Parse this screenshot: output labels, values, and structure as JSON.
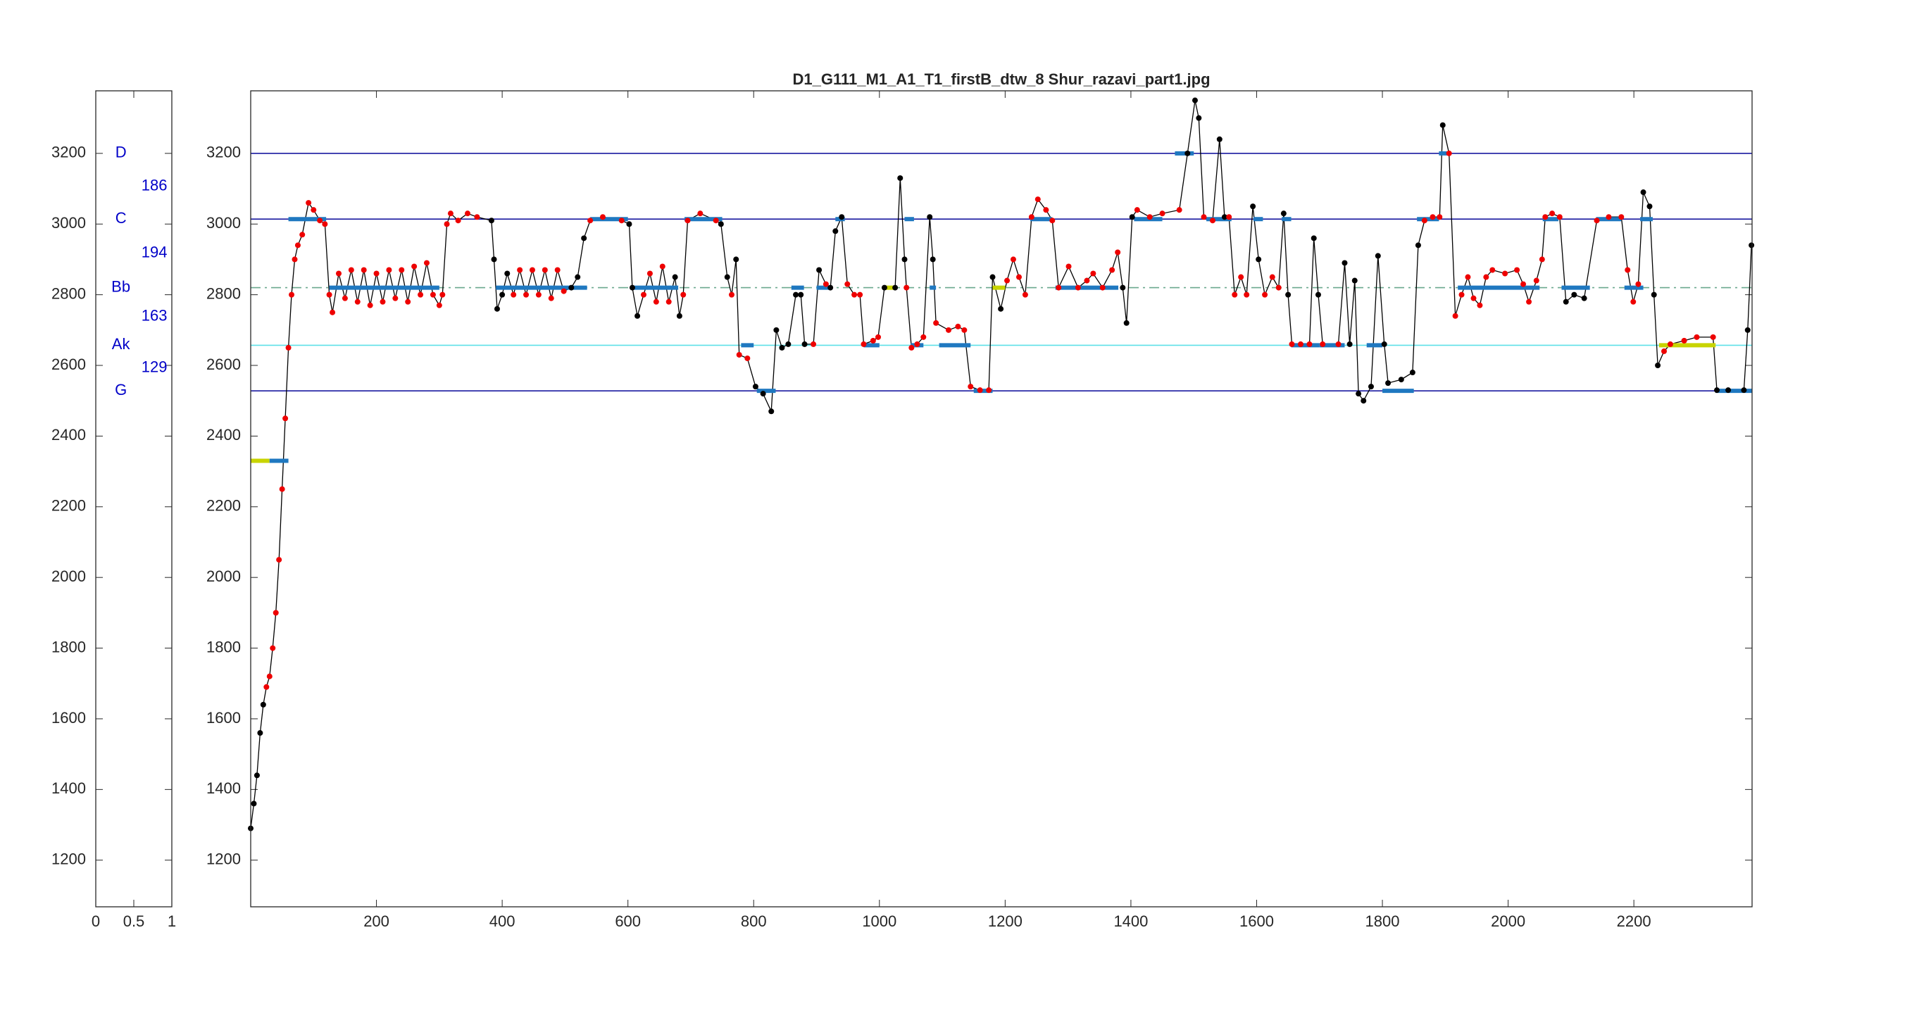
{
  "chart_data": [
    {
      "type": "scale",
      "xlim": [
        0,
        1
      ],
      "xticks": [
        0,
        0.5,
        1
      ],
      "ylim": [
        1068,
        3377
      ],
      "yticks": [
        1200,
        1400,
        1600,
        1800,
        2000,
        2200,
        2400,
        2600,
        2800,
        3000,
        3200
      ],
      "notes": [
        {
          "label": "D",
          "value": 3200
        },
        {
          "label": "C",
          "value": 3014
        },
        {
          "label": "Bb",
          "value": 2820
        },
        {
          "label": "Ak",
          "value": 2657
        },
        {
          "label": "G",
          "value": 2528
        }
      ],
      "intervals": [
        186,
        194,
        163,
        129
      ],
      "color": "#0000c8"
    },
    {
      "type": "line",
      "title": "D1_G111_M1_A1_T1_firstB_dtw_8 Shur_razavi_part1.jpg",
      "xlim": [
        0,
        2388
      ],
      "xticks": [
        200,
        400,
        600,
        800,
        1000,
        1200,
        1400,
        1600,
        1800,
        2000,
        2200
      ],
      "ylim": [
        1068,
        3377
      ],
      "yticks": [
        1200,
        1400,
        1600,
        1800,
        2000,
        2200,
        2400,
        2600,
        2800,
        3000,
        3200
      ],
      "reference_lines": [
        {
          "value": 3200,
          "color": "#1a1aa0",
          "style": "solid"
        },
        {
          "value": 3014,
          "color": "#1a1aa0",
          "style": "solid"
        },
        {
          "value": 2820,
          "color": "#6aa88e",
          "style": "dashed"
        },
        {
          "value": 2657,
          "color": "#5ee0e8",
          "style": "solid"
        },
        {
          "value": 2528,
          "color": "#1a1aa0",
          "style": "solid"
        }
      ],
      "segments": [
        {
          "x": [
            0,
            30
          ],
          "value": 2330,
          "color": "#c8d400"
        },
        {
          "x": [
            30,
            60
          ],
          "value": 2330,
          "color": "#1f78c0"
        },
        {
          "x": [
            60,
            120
          ],
          "value": 3014,
          "color": "#1f78c0"
        },
        {
          "x": [
            125,
            300
          ],
          "value": 2820,
          "color": "#1f78c0"
        },
        {
          "x": [
            390,
            535
          ],
          "value": 2820,
          "color": "#1f78c0"
        },
        {
          "x": [
            540,
            600
          ],
          "value": 3014,
          "color": "#1f78c0"
        },
        {
          "x": [
            605,
            680
          ],
          "value": 2820,
          "color": "#1f78c0"
        },
        {
          "x": [
            690,
            750
          ],
          "value": 3014,
          "color": "#1f78c0"
        },
        {
          "x": [
            780,
            800
          ],
          "value": 2657,
          "color": "#1f78c0"
        },
        {
          "x": [
            805,
            835
          ],
          "value": 2528,
          "color": "#1f78c0"
        },
        {
          "x": [
            860,
            880
          ],
          "value": 2820,
          "color": "#1f78c0"
        },
        {
          "x": [
            900,
            925
          ],
          "value": 2820,
          "color": "#1f78c0"
        },
        {
          "x": [
            930,
            945
          ],
          "value": 3014,
          "color": "#1f78c0"
        },
        {
          "x": [
            975,
            1000
          ],
          "value": 2657,
          "color": "#1f78c0"
        },
        {
          "x": [
            1005,
            1025
          ],
          "value": 2820,
          "color": "#c8d400"
        },
        {
          "x": [
            1040,
            1055
          ],
          "value": 3014,
          "color": "#1f78c0"
        },
        {
          "x": [
            1050,
            1070
          ],
          "value": 2657,
          "color": "#1f78c0"
        },
        {
          "x": [
            1080,
            1090
          ],
          "value": 2820,
          "color": "#1f78c0"
        },
        {
          "x": [
            1095,
            1145
          ],
          "value": 2657,
          "color": "#1f78c0"
        },
        {
          "x": [
            1150,
            1180
          ],
          "value": 2528,
          "color": "#1f78c0"
        },
        {
          "x": [
            1180,
            1200
          ],
          "value": 2820,
          "color": "#c8d400"
        },
        {
          "x": [
            1240,
            1275
          ],
          "value": 3014,
          "color": "#1f78c0"
        },
        {
          "x": [
            1280,
            1380
          ],
          "value": 2820,
          "color": "#1f78c0"
        },
        {
          "x": [
            1405,
            1450
          ],
          "value": 3014,
          "color": "#1f78c0"
        },
        {
          "x": [
            1470,
            1500
          ],
          "value": 3200,
          "color": "#1f78c0"
        },
        {
          "x": [
            1520,
            1560
          ],
          "value": 3014,
          "color": "#1f78c0"
        },
        {
          "x": [
            1595,
            1610
          ],
          "value": 3014,
          "color": "#1f78c0"
        },
        {
          "x": [
            1640,
            1655
          ],
          "value": 3014,
          "color": "#1f78c0"
        },
        {
          "x": [
            1655,
            1700
          ],
          "value": 2657,
          "color": "#1f78c0"
        },
        {
          "x": [
            1700,
            1740
          ],
          "value": 2657,
          "color": "#1f78c0"
        },
        {
          "x": [
            1775,
            1800
          ],
          "value": 2657,
          "color": "#1f78c0"
        },
        {
          "x": [
            1800,
            1850
          ],
          "value": 2528,
          "color": "#1f78c0"
        },
        {
          "x": [
            1855,
            1890
          ],
          "value": 3014,
          "color": "#1f78c0"
        },
        {
          "x": [
            1890,
            1905
          ],
          "value": 3200,
          "color": "#1f78c0"
        },
        {
          "x": [
            1920,
            2050
          ],
          "value": 2820,
          "color": "#1f78c0"
        },
        {
          "x": [
            2055,
            2080
          ],
          "value": 3014,
          "color": "#1f78c0"
        },
        {
          "x": [
            2085,
            2130
          ],
          "value": 2820,
          "color": "#1f78c0"
        },
        {
          "x": [
            2140,
            2180
          ],
          "value": 3014,
          "color": "#1f78c0"
        },
        {
          "x": [
            2185,
            2215
          ],
          "value": 2820,
          "color": "#1f78c0"
        },
        {
          "x": [
            2210,
            2230
          ],
          "value": 3014,
          "color": "#1f78c0"
        },
        {
          "x": [
            2240,
            2330
          ],
          "value": 2657,
          "color": "#c8d400"
        },
        {
          "x": [
            2330,
            2388
          ],
          "value": 2528,
          "color": "#1f78c0"
        }
      ],
      "x": [
        0,
        5,
        10,
        15,
        20,
        25,
        30,
        35,
        40,
        45,
        50,
        55,
        60,
        65,
        70,
        75,
        82,
        92,
        100,
        110,
        118,
        125,
        130,
        140,
        150,
        160,
        170,
        180,
        190,
        200,
        210,
        220,
        230,
        240,
        250,
        260,
        270,
        280,
        290,
        300,
        305,
        312,
        318,
        330,
        345,
        360,
        383,
        387,
        392,
        400,
        408,
        418,
        428,
        438,
        448,
        458,
        468,
        478,
        488,
        498,
        510,
        520,
        530,
        540,
        560,
        590,
        602,
        607,
        615,
        625,
        635,
        645,
        655,
        665,
        675,
        682,
        688,
        695,
        715,
        740,
        748,
        758,
        765,
        772,
        777,
        790,
        803,
        815,
        828,
        836,
        845,
        855,
        867,
        875,
        881,
        895,
        904,
        915,
        922,
        930,
        940,
        949,
        960,
        969,
        975,
        990,
        998,
        1008,
        1025,
        1033,
        1040,
        1043,
        1051,
        1060,
        1070,
        1080,
        1085,
        1090,
        1110,
        1125,
        1135,
        1145,
        1160,
        1174,
        1180,
        1193,
        1203,
        1213,
        1222,
        1232,
        1242,
        1252,
        1265,
        1275,
        1285,
        1301,
        1316,
        1330,
        1340,
        1355,
        1370,
        1379,
        1387,
        1393,
        1402,
        1410,
        1430,
        1450,
        1477,
        1490,
        1502,
        1508,
        1516,
        1530,
        1541,
        1549,
        1556,
        1565,
        1575,
        1584,
        1594,
        1603,
        1613,
        1625,
        1635,
        1643,
        1650,
        1656,
        1670,
        1684,
        1691,
        1698,
        1705,
        1730,
        1740,
        1748,
        1756,
        1762,
        1770,
        1782,
        1793,
        1803,
        1809,
        1830,
        1848,
        1857,
        1867,
        1880,
        1891,
        1896,
        1906,
        1916,
        1926,
        1936,
        1945,
        1955,
        1965,
        1975,
        1995,
        2014,
        2024,
        2033,
        2045,
        2054,
        2059,
        2070,
        2082,
        2092,
        2105,
        2121,
        2141,
        2160,
        2180,
        2190,
        2199,
        2207,
        2215,
        2225,
        2232,
        2238,
        2248,
        2258,
        2280,
        2300,
        2326,
        2332,
        2350,
        2375,
        2381,
        2387
      ],
      "series": [
        {
          "color": "#000000",
          "values": [
            1290,
            1360,
            1440,
            1560,
            1640,
            1690,
            1720,
            1800,
            1900,
            2050,
            2250,
            2450,
            2650,
            2800,
            2900,
            2940,
            2970,
            3060,
            3040,
            3010,
            3000,
            2800,
            2750,
            2860,
            2790,
            2870,
            2780,
            2870,
            2770,
            2860,
            2780,
            2870,
            2790,
            2870,
            2780,
            2880,
            2800,
            2890,
            2800,
            2770,
            2800,
            3000,
            3030,
            3010,
            3030,
            3020,
            3010,
            2900,
            2760,
            2800,
            2860,
            2800,
            2870,
            2800,
            2870,
            2800,
            2870,
            2790,
            2870,
            2810,
            2820,
            2850,
            2960,
            3010,
            3020,
            3010,
            3000,
            2820,
            2740,
            2800,
            2860,
            2780,
            2880,
            2780,
            2850,
            2740,
            2800,
            3010,
            3030,
            3010,
            3000,
            2850,
            2800,
            2900,
            2630,
            2620,
            2540,
            2520,
            2470,
            2700,
            2650,
            2660,
            2800,
            2800,
            2660,
            2660,
            2870,
            2830,
            2820,
            2980,
            3020,
            2830,
            2800,
            2800,
            2660,
            2670,
            2680,
            2820,
            2820,
            3130,
            2900,
            2820,
            2650,
            2660,
            2680,
            3020,
            2900,
            2720,
            2700,
            2710,
            2700,
            2540,
            2530,
            2530,
            2850,
            2760,
            2840,
            2900,
            2850,
            2800,
            3020,
            3070,
            3040,
            3010,
            2820,
            2880,
            2820,
            2840,
            2860,
            2820,
            2870,
            2920,
            2820,
            2720,
            3020,
            3040,
            3020,
            3030,
            3040,
            3200,
            3350,
            3300,
            3020,
            3010,
            3240,
            3020,
            3020,
            2800,
            2850,
            2800,
            3050,
            2900,
            2800,
            2850,
            2820,
            3030,
            2800,
            2660,
            2660,
            2660,
            2960,
            2800,
            2660,
            2660,
            2890,
            2660,
            2840,
            2520,
            2500,
            2540,
            2910,
            2660,
            2550,
            2560,
            2580,
            2940,
            3010,
            3020,
            3020,
            3280,
            3200,
            2740,
            2800,
            2850,
            2790,
            2770,
            2850,
            2870,
            2860,
            2870,
            2830,
            2780,
            2840,
            2900,
            3020,
            3030,
            3020,
            2780,
            2800,
            2790,
            3010,
            3020,
            3020,
            2870,
            2780,
            2830,
            3090,
            3050,
            2800,
            2600,
            2640,
            2660,
            2670,
            2680,
            2680,
            2530,
            2530,
            2530,
            2700,
            2940
          ],
          "point_colors": [
            "#000",
            "#000",
            "#000",
            "#000",
            "#000",
            "#e00",
            "#e00",
            "#e00",
            "#e00",
            "#e00",
            "#e00",
            "#e00",
            "#e00",
            "#e00",
            "#e00",
            "#e00",
            "#e00",
            "#e00",
            "#e00",
            "#e00",
            "#e00",
            "#e00",
            "#e00",
            "#e00",
            "#e00",
            "#e00",
            "#e00",
            "#e00",
            "#e00",
            "#e00",
            "#e00",
            "#e00",
            "#e00",
            "#e00",
            "#e00",
            "#e00",
            "#e00",
            "#e00",
            "#e00",
            "#e00",
            "#e00",
            "#e00",
            "#e00",
            "#e00",
            "#e00",
            "#e00",
            "#000",
            "#000",
            "#000",
            "#000",
            "#000",
            "#e00",
            "#e00",
            "#e00",
            "#e00",
            "#e00",
            "#e00",
            "#e00",
            "#e00",
            "#e00",
            "#000",
            "#000",
            "#000",
            "#e00",
            "#e00",
            "#e00",
            "#000",
            "#000",
            "#000",
            "#e00",
            "#e00",
            "#e00",
            "#e00",
            "#e00",
            "#000",
            "#000",
            "#e00",
            "#e00",
            "#e00",
            "#e00",
            "#000",
            "#000",
            "#e00",
            "#000",
            "#e00",
            "#e00",
            "#000",
            "#000",
            "#000",
            "#000",
            "#000",
            "#000",
            "#000",
            "#000",
            "#000",
            "#e00",
            "#000",
            "#e00",
            "#000",
            "#000",
            "#000",
            "#e00",
            "#e00",
            "#e00",
            "#e00",
            "#e00",
            "#e00",
            "#000",
            "#000",
            "#000",
            "#000",
            "#e00",
            "#e00",
            "#e00",
            "#e00",
            "#000",
            "#000",
            "#e00",
            "#e00",
            "#e00",
            "#e00",
            "#e00",
            "#e00",
            "#e00",
            "#000",
            "#000",
            "#e00",
            "#e00",
            "#e00",
            "#e00",
            "#e00",
            "#e00",
            "#e00",
            "#e00",
            "#e00",
            "#e00",
            "#e00",
            "#e00",
            "#e00",
            "#e00",
            "#e00",
            "#e00",
            "#000",
            "#000",
            "#000",
            "#e00",
            "#e00",
            "#e00",
            "#e00",
            "#000",
            "#000",
            "#000",
            "#e00",
            "#e00",
            "#000",
            "#000",
            "#e00",
            "#e00",
            "#e00",
            "#e00",
            "#000",
            "#000",
            "#e00",
            "#e00",
            "#e00",
            "#000",
            "#000",
            "#e00",
            "#e00",
            "#e00",
            "#000",
            "#000",
            "#e00",
            "#e00",
            "#000",
            "#000",
            "#000",
            "#000",
            "#000",
            "#000",
            "#000",
            "#000",
            "#000",
            "#000",
            "#000",
            "#000",
            "#e00",
            "#e00",
            "#e00",
            "#000",
            "#e00",
            "#e00",
            "#e00",
            "#e00",
            "#e00",
            "#e00",
            "#e00",
            "#e00",
            "#e00",
            "#e00",
            "#e00",
            "#e00",
            "#e00",
            "#e00",
            "#e00",
            "#e00",
            "#e00",
            "#000",
            "#000",
            "#000",
            "#e00",
            "#e00",
            "#e00",
            "#e00",
            "#e00",
            "#e00",
            "#000",
            "#000",
            "#000",
            "#000",
            "#e00",
            "#e00",
            "#e00",
            "#e00",
            "#e00",
            "#000",
            "#000",
            "#000",
            "#000",
            "#000"
          ]
        }
      ]
    }
  ]
}
